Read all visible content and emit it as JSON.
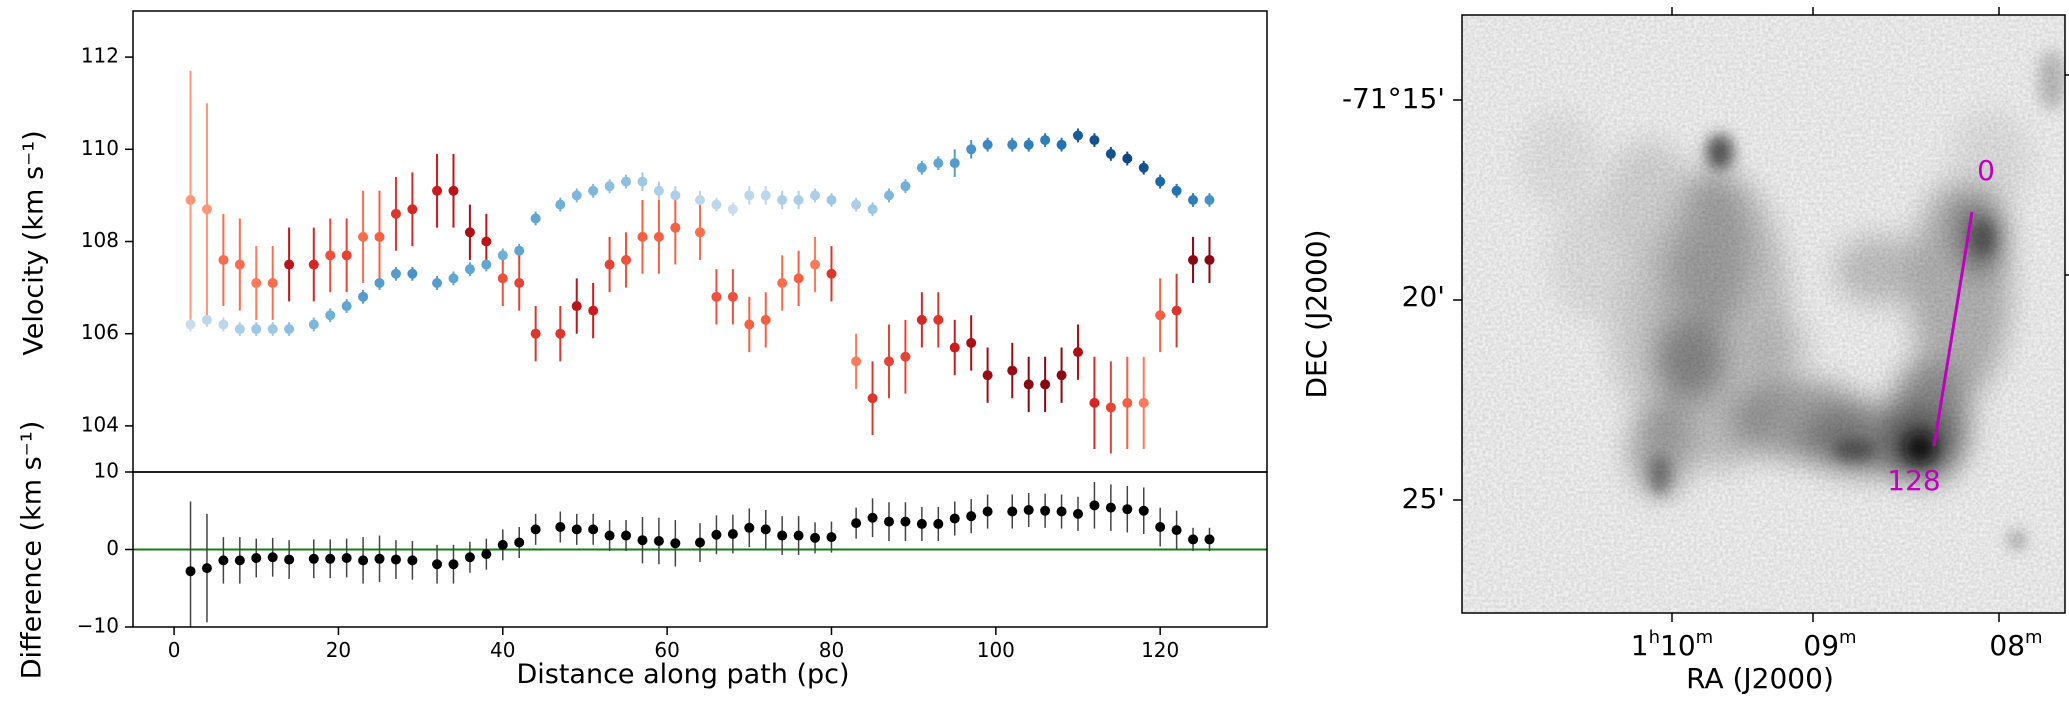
{
  "chart_data": [
    {
      "type": "scatter",
      "title": "",
      "xlabel": "Distance along path (pc)",
      "ylabel": "Velocity (km s⁻¹)",
      "xlim": [
        -5,
        133
      ],
      "ylim": [
        103,
        113
      ],
      "xticks": [
        "0",
        "20",
        "40",
        "60",
        "80",
        "100",
        "120"
      ],
      "yticks": [
        "104",
        "106",
        "108",
        "110",
        "112"
      ],
      "x": [
        2,
        4,
        6,
        8,
        10,
        12,
        14,
        17,
        19,
        21,
        23,
        25,
        27,
        29,
        32,
        34,
        36,
        38,
        40,
        42,
        44,
        47,
        49,
        51,
        53,
        55,
        57,
        59,
        61,
        64,
        66,
        68,
        70,
        72,
        74,
        76,
        78,
        80,
        83,
        85,
        87,
        89,
        91,
        93,
        95,
        97,
        99,
        102,
        104,
        106,
        108,
        110,
        112,
        114,
        116,
        118,
        120,
        122,
        124,
        126
      ],
      "series": [
        {
          "name": "component 1 (red)",
          "values": [
            108.9,
            108.7,
            107.6,
            107.5,
            107.1,
            107.1,
            107.5,
            107.5,
            107.7,
            107.7,
            108.1,
            108.1,
            108.6,
            108.7,
            109.1,
            109.1,
            108.2,
            108.0,
            107.2,
            107.1,
            106.0,
            106.0,
            106.6,
            106.5,
            107.5,
            107.6,
            108.1,
            108.1,
            108.3,
            108.2,
            106.8,
            106.8,
            106.2,
            106.3,
            107.1,
            107.2,
            107.5,
            107.3,
            105.4,
            104.6,
            105.4,
            105.5,
            106.3,
            106.3,
            105.7,
            105.8,
            105.1,
            105.2,
            104.9,
            104.9,
            105.1,
            105.6,
            104.5,
            104.4,
            104.5,
            104.5,
            106.4,
            106.5,
            107.6,
            107.6
          ],
          "errors": [
            2.8,
            2.3,
            1.0,
            1.0,
            0.8,
            0.8,
            0.8,
            0.8,
            0.8,
            0.8,
            1.0,
            1.0,
            0.8,
            0.8,
            0.8,
            0.8,
            0.6,
            0.6,
            0.6,
            0.6,
            0.6,
            0.6,
            0.6,
            0.6,
            0.6,
            0.6,
            0.8,
            0.8,
            0.8,
            0.6,
            0.6,
            0.6,
            0.6,
            0.6,
            0.6,
            0.6,
            0.6,
            0.6,
            0.6,
            0.8,
            0.8,
            0.8,
            0.6,
            0.6,
            0.6,
            0.6,
            0.6,
            0.6,
            0.6,
            0.6,
            0.6,
            0.6,
            1.0,
            1.0,
            1.0,
            1.0,
            0.8,
            0.8,
            0.5,
            0.5
          ],
          "intensity": [
            0.25,
            0.25,
            0.4,
            0.4,
            0.35,
            0.4,
            0.75,
            0.65,
            0.5,
            0.55,
            0.4,
            0.45,
            0.6,
            0.65,
            0.7,
            0.75,
            0.8,
            0.75,
            0.5,
            0.55,
            0.6,
            0.6,
            0.75,
            0.7,
            0.55,
            0.5,
            0.45,
            0.45,
            0.45,
            0.4,
            0.5,
            0.5,
            0.45,
            0.45,
            0.4,
            0.45,
            0.35,
            0.6,
            0.35,
            0.6,
            0.55,
            0.55,
            0.65,
            0.6,
            0.7,
            0.8,
            0.85,
            0.85,
            0.9,
            0.9,
            0.9,
            0.8,
            0.65,
            0.55,
            0.45,
            0.35,
            0.45,
            0.6,
            0.9,
            0.9
          ]
        },
        {
          "name": "component 2 (blue)",
          "values": [
            106.2,
            106.3,
            106.2,
            106.1,
            106.1,
            106.1,
            106.1,
            106.2,
            106.4,
            106.6,
            106.8,
            107.1,
            107.3,
            107.3,
            107.1,
            107.2,
            107.4,
            107.5,
            107.7,
            107.8,
            108.5,
            108.8,
            109.0,
            109.1,
            109.2,
            109.3,
            109.3,
            109.1,
            109.0,
            108.9,
            108.8,
            108.7,
            109.0,
            109.0,
            108.9,
            108.9,
            109.0,
            108.9,
            108.8,
            108.7,
            109.0,
            109.2,
            109.6,
            109.7,
            109.7,
            110.0,
            110.1,
            110.1,
            110.1,
            110.2,
            110.1,
            110.3,
            110.2,
            109.9,
            109.8,
            109.6,
            109.3,
            109.1,
            108.9,
            108.9
          ],
          "errors": [
            0.15,
            0.15,
            0.15,
            0.15,
            0.15,
            0.15,
            0.15,
            0.15,
            0.15,
            0.15,
            0.15,
            0.15,
            0.15,
            0.15,
            0.15,
            0.15,
            0.15,
            0.15,
            0.15,
            0.15,
            0.15,
            0.15,
            0.15,
            0.15,
            0.15,
            0.15,
            0.2,
            0.2,
            0.2,
            0.2,
            0.15,
            0.15,
            0.2,
            0.2,
            0.2,
            0.2,
            0.15,
            0.15,
            0.15,
            0.15,
            0.15,
            0.15,
            0.15,
            0.15,
            0.3,
            0.2,
            0.15,
            0.15,
            0.15,
            0.15,
            0.15,
            0.15,
            0.15,
            0.15,
            0.15,
            0.15,
            0.15,
            0.15,
            0.15,
            0.15
          ],
          "intensity": [
            0.1,
            0.15,
            0.15,
            0.2,
            0.25,
            0.25,
            0.3,
            0.35,
            0.4,
            0.45,
            0.5,
            0.5,
            0.5,
            0.55,
            0.5,
            0.45,
            0.45,
            0.45,
            0.4,
            0.45,
            0.45,
            0.4,
            0.35,
            0.35,
            0.3,
            0.3,
            0.25,
            0.2,
            0.2,
            0.15,
            0.15,
            0.1,
            0.15,
            0.15,
            0.2,
            0.2,
            0.2,
            0.25,
            0.2,
            0.25,
            0.35,
            0.4,
            0.45,
            0.45,
            0.5,
            0.55,
            0.6,
            0.6,
            0.65,
            0.65,
            0.7,
            0.8,
            0.85,
            0.85,
            0.9,
            0.85,
            0.75,
            0.7,
            0.65,
            0.55
          ]
        }
      ]
    },
    {
      "type": "scatter",
      "title": "",
      "xlabel": "Distance along path (pc)",
      "ylabel": "Difference (km s⁻¹)",
      "xlim": [
        -5,
        133
      ],
      "ylim": [
        -10,
        10
      ],
      "yticks": [
        "−10",
        "0",
        "10"
      ],
      "reference_line": 0,
      "x": [
        2,
        4,
        6,
        8,
        10,
        12,
        14,
        17,
        19,
        21,
        23,
        25,
        27,
        29,
        32,
        34,
        36,
        38,
        40,
        42,
        44,
        47,
        49,
        51,
        53,
        55,
        57,
        59,
        61,
        64,
        66,
        68,
        70,
        72,
        74,
        76,
        78,
        80,
        83,
        85,
        87,
        89,
        91,
        93,
        95,
        97,
        99,
        102,
        104,
        106,
        108,
        110,
        112,
        114,
        116,
        118,
        120,
        122,
        124,
        126
      ],
      "values": [
        -2.8,
        -2.4,
        -1.4,
        -1.4,
        -1.1,
        -1.0,
        -1.3,
        -1.2,
        -1.2,
        -1.1,
        -1.4,
        -1.2,
        -1.3,
        -1.4,
        -1.9,
        -1.9,
        -1.0,
        -0.6,
        0.6,
        0.9,
        2.6,
        2.9,
        2.6,
        2.6,
        1.8,
        1.8,
        1.2,
        1.1,
        0.8,
        0.9,
        1.9,
        2.0,
        2.8,
        2.6,
        1.8,
        1.8,
        1.5,
        1.6,
        3.4,
        4.1,
        3.6,
        3.6,
        3.3,
        3.3,
        4.0,
        4.3,
        4.9,
        4.9,
        5.1,
        5.0,
        4.9,
        4.6,
        5.7,
        5.4,
        5.2,
        5.0,
        2.9,
        2.5,
        1.3,
        1.3
      ],
      "errors": [
        9,
        7,
        3,
        3,
        2.5,
        2.5,
        2.5,
        2.5,
        2.5,
        2.5,
        3,
        3,
        2.5,
        2.5,
        2.5,
        2.5,
        2,
        2,
        2,
        2,
        2,
        2,
        2,
        2,
        2,
        2,
        3,
        3,
        3,
        2.5,
        2.5,
        2.5,
        2.5,
        2.5,
        2.5,
        2.5,
        2,
        2,
        2,
        2.5,
        2.5,
        2.5,
        2.2,
        2.2,
        2.2,
        2.2,
        2.2,
        2.2,
        2.2,
        2.2,
        2.2,
        2.2,
        3,
        3,
        3,
        3,
        2.5,
        2.5,
        1.5,
        1.5
      ]
    },
    {
      "type": "image",
      "xlabel": "RA (J2000)",
      "ylabel": "DEC (J2000)",
      "ra_ticks": [
        {
          "major": "1",
          "sup1": "h",
          "minor": "10",
          "sup2": "m"
        },
        {
          "major": "09",
          "sup1": "m",
          "minor": "",
          "sup2": ""
        },
        {
          "major": "08",
          "sup1": "m",
          "minor": "",
          "sup2": ""
        }
      ],
      "dec_ticks": [
        "-71°15'",
        "20'",
        "25'"
      ],
      "path_labels": {
        "start": "0",
        "end": "128"
      },
      "colormap": "grayscale",
      "path_color": "#bf00bf"
    }
  ]
}
